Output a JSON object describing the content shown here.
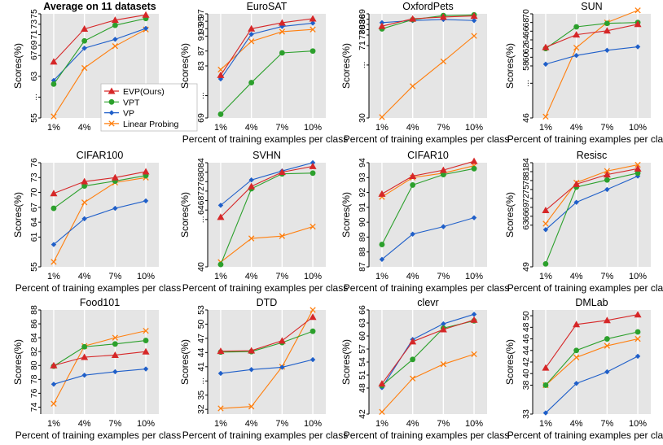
{
  "figure": {
    "x_tick_labels": [
      "1%",
      "4%",
      "7%",
      "10%"
    ],
    "legend_title_hidden": ""
  },
  "chart_data": [
    {
      "type": "line",
      "title": "Average on 11 datasets",
      "title_bold": true,
      "xlabel": "",
      "ylabel": "Scores(%)",
      "categories": [
        "1%",
        "4%",
        "7%",
        "10%"
      ],
      "ylim": [
        55,
        75
      ],
      "yticks": [
        55,
        59,
        63,
        67,
        69,
        71,
        73,
        75
      ],
      "ytick_labels": [
        "55",
        "...",
        "63",
        "67",
        "69",
        "71",
        "73",
        "75"
      ],
      "series": [
        {
          "name": "EVP(Ours)",
          "values": [
            65.8,
            72.1,
            73.8,
            74.8
          ]
        },
        {
          "name": "VPT",
          "values": [
            61.5,
            69.8,
            72.8,
            74.1
          ]
        },
        {
          "name": "VP",
          "values": [
            62.2,
            68.4,
            70.1,
            72.2
          ]
        },
        {
          "name": "Linear Probing",
          "values": [
            55.3,
            64.6,
            68.8,
            72.0
          ]
        }
      ],
      "legend": {
        "position": "bottom-right",
        "entries": [
          "EVP(Ours)",
          "VPT",
          "VP",
          "Linear Probing"
        ]
      }
    },
    {
      "type": "line",
      "title": "EuroSAT",
      "xlabel": "Percent of training examples per class",
      "ylabel": "Scores(%)",
      "categories": [
        "1%",
        "4%",
        "7%",
        "10%"
      ],
      "ylim": [
        69,
        97
      ],
      "yticks": [
        69,
        75,
        83,
        87,
        91,
        93,
        95,
        97
      ],
      "ytick_labels": [
        "69",
        "...",
        "83",
        "87",
        "91",
        "93",
        "95",
        "97"
      ],
      "series": [
        {
          "name": "EVP(Ours)",
          "values": [
            80.5,
            93.0,
            94.6,
            95.7
          ]
        },
        {
          "name": "VPT",
          "values": [
            70.0,
            78.5,
            86.5,
            87.0
          ]
        },
        {
          "name": "VP",
          "values": [
            79.5,
            91.5,
            93.6,
            94.5
          ]
        },
        {
          "name": "Linear Probing",
          "values": [
            82.0,
            89.6,
            92.2,
            92.8
          ]
        }
      ]
    },
    {
      "type": "line",
      "title": "OxfordPets",
      "xlabel": "Percent of training examples per class",
      "ylabel": "Scores(%)",
      "categories": [
        "1%",
        "4%",
        "7%",
        "10%"
      ],
      "ylim": [
        30,
        89
      ],
      "yticks": [
        30,
        60,
        71,
        77,
        80,
        83,
        86,
        89
      ],
      "ytick_labels": [
        "30",
        "...",
        "71",
        "77",
        "80",
        "83",
        "86",
        "89"
      ],
      "series": [
        {
          "name": "EVP(Ours)",
          "values": [
            82.0,
            86.2,
            87.2,
            87.8
          ]
        },
        {
          "name": "VPT",
          "values": [
            80.5,
            85.7,
            88.0,
            88.4
          ]
        },
        {
          "name": "VP",
          "values": [
            84.0,
            85.2,
            85.8,
            85.2
          ]
        },
        {
          "name": "Linear Probing",
          "values": [
            30.5,
            48.0,
            62.0,
            76.5
          ]
        }
      ]
    },
    {
      "type": "line",
      "title": "SUN",
      "xlabel": "Percent of training examples per class",
      "ylabel": "Scores(%)",
      "categories": [
        "1%",
        "4%",
        "7%",
        "10%"
      ],
      "ylim": [
        46,
        70
      ],
      "yticks": [
        46,
        54,
        58,
        60,
        62,
        64,
        66,
        68,
        70
      ],
      "ytick_labels": [
        "46",
        "...",
        "58",
        "60",
        "62",
        "64",
        "66",
        "68",
        "70"
      ],
      "series": [
        {
          "name": "EVP(Ours)",
          "values": [
            62.3,
            65.2,
            66.1,
            67.6
          ]
        },
        {
          "name": "VPT",
          "values": [
            62.0,
            67.0,
            67.8,
            68.0
          ]
        },
        {
          "name": "VP",
          "values": [
            58.4,
            60.4,
            61.6,
            62.4
          ]
        },
        {
          "name": "Linear Probing",
          "values": [
            46.3,
            62.2,
            68.0,
            70.8
          ]
        }
      ]
    },
    {
      "type": "line",
      "title": "CIFAR100",
      "xlabel": "Percent of training examples per class",
      "ylabel": "Scores(%)",
      "categories": [
        "1%",
        "4%",
        "7%",
        "10%"
      ],
      "ylim": [
        55,
        76
      ],
      "yticks": [
        55,
        61,
        64,
        67,
        70,
        73,
        76
      ],
      "ytick_labels": [
        "55",
        "61",
        "64",
        "67",
        "70",
        "73",
        "76"
      ],
      "series": [
        {
          "name": "EVP(Ours)",
          "values": [
            69.8,
            72.2,
            73.0,
            74.2
          ]
        },
        {
          "name": "VPT",
          "values": [
            66.8,
            71.3,
            72.3,
            73.4
          ]
        },
        {
          "name": "VP",
          "values": [
            59.5,
            64.7,
            66.8,
            68.3
          ]
        },
        {
          "name": "Linear Probing",
          "values": [
            56.0,
            68.0,
            72.0,
            73.0
          ]
        }
      ]
    },
    {
      "type": "line",
      "title": "SVHN",
      "xlabel": "Percent of training examples per class",
      "ylabel": "Scores(%)",
      "categories": [
        "1%",
        "4%",
        "7%",
        "10%"
      ],
      "ylim": [
        40,
        84
      ],
      "yticks": [
        40,
        60,
        64,
        68,
        72,
        76,
        80,
        84
      ],
      "ytick_labels": [
        "40",
        "...",
        "64",
        "68",
        "72",
        "76",
        "80",
        "84"
      ],
      "series": [
        {
          "name": "EVP(Ours)",
          "values": [
            61.0,
            74.0,
            80.0,
            82.5
          ]
        },
        {
          "name": "VPT",
          "values": [
            41.0,
            73.0,
            79.3,
            79.6
          ]
        },
        {
          "name": "VP",
          "values": [
            66.0,
            76.7,
            80.5,
            84.0
          ]
        },
        {
          "name": "Linear Probing",
          "values": [
            42.0,
            52.0,
            53.0,
            57.0
          ]
        }
      ]
    },
    {
      "type": "line",
      "title": "CIFAR10",
      "xlabel": "Percent of training examples per class",
      "ylabel": "Scores(%)",
      "categories": [
        "1%",
        "4%",
        "7%",
        "10%"
      ],
      "ylim": [
        87,
        94
      ],
      "yticks": [
        87,
        88,
        89,
        90,
        91,
        92,
        93,
        94
      ],
      "ytick_labels": [
        "87",
        "88",
        "89",
        "90",
        "91",
        "92",
        "93",
        "94"
      ],
      "series": [
        {
          "name": "EVP(Ours)",
          "values": [
            91.9,
            93.1,
            93.5,
            94.1
          ]
        },
        {
          "name": "VPT",
          "values": [
            88.5,
            92.5,
            93.2,
            93.6
          ]
        },
        {
          "name": "VP",
          "values": [
            87.5,
            89.2,
            89.7,
            90.3
          ]
        },
        {
          "name": "Linear Probing",
          "values": [
            91.7,
            93.0,
            93.3,
            93.8
          ]
        }
      ]
    },
    {
      "type": "line",
      "title": "Resisc",
      "xlabel": "Percent of training examples per class",
      "ylabel": "Scores(%)",
      "categories": [
        "1%",
        "4%",
        "7%",
        "10%"
      ],
      "ylim": [
        49,
        84
      ],
      "yticks": [
        49,
        63,
        66,
        69,
        72,
        75,
        78,
        81,
        84
      ],
      "ytick_labels": [
        "49",
        "63",
        "66",
        "69",
        "72",
        "75",
        "78",
        "81",
        "84"
      ],
      "series": [
        {
          "name": "EVP(Ours)",
          "values": [
            68.0,
            76.8,
            80.0,
            82.0
          ]
        },
        {
          "name": "VPT",
          "values": [
            50.0,
            75.8,
            78.2,
            80.5
          ]
        },
        {
          "name": "VP",
          "values": [
            61.5,
            70.7,
            75.0,
            79.5
          ]
        },
        {
          "name": "Linear Probing",
          "values": [
            63.5,
            77.3,
            81.2,
            83.3
          ]
        }
      ]
    },
    {
      "type": "line",
      "title": "Food101",
      "xlabel": "Percent of training examples per class",
      "ylabel": "Scores(%)",
      "categories": [
        "1%",
        "4%",
        "7%",
        "10%"
      ],
      "ylim": [
        73,
        88
      ],
      "yticks": [
        74,
        76,
        78,
        80,
        82,
        84,
        86,
        88
      ],
      "ytick_labels": [
        "74",
        "76",
        "78",
        "80",
        "82",
        "84",
        "86",
        "88"
      ],
      "series": [
        {
          "name": "EVP(Ours)",
          "values": [
            80.0,
            81.2,
            81.5,
            82.0
          ]
        },
        {
          "name": "VPT",
          "values": [
            79.9,
            82.7,
            83.1,
            83.6
          ]
        },
        {
          "name": "VP",
          "values": [
            77.3,
            78.6,
            79.1,
            79.5
          ]
        },
        {
          "name": "Linear Probing",
          "values": [
            74.5,
            82.8,
            84.0,
            85.0
          ]
        }
      ]
    },
    {
      "type": "line",
      "title": "DTD",
      "xlabel": "Percent of training examples per class",
      "ylabel": "Scores(%)",
      "categories": [
        "1%",
        "4%",
        "7%",
        "10%"
      ],
      "ylim": [
        31,
        53
      ],
      "yticks": [
        32,
        35,
        38,
        41,
        44,
        47,
        50,
        53
      ],
      "ytick_labels": [
        "32",
        "35",
        "...",
        "41",
        "44",
        "47",
        "50",
        "53"
      ],
      "series": [
        {
          "name": "EVP(Ours)",
          "values": [
            44.3,
            44.4,
            46.5,
            51.5
          ]
        },
        {
          "name": "VPT",
          "values": [
            44.1,
            44.2,
            46.1,
            48.5
          ]
        },
        {
          "name": "VP",
          "values": [
            39.6,
            40.4,
            40.9,
            42.5
          ]
        },
        {
          "name": "Linear Probing",
          "values": [
            32.2,
            32.6,
            41.0,
            53.0
          ]
        }
      ]
    },
    {
      "type": "line",
      "title": "clevr",
      "xlabel": "Percent of training examples per class",
      "ylabel": "Scores(%)",
      "categories": [
        "1%",
        "4%",
        "7%",
        "10%"
      ],
      "ylim": [
        42,
        66
      ],
      "yticks": [
        42,
        48,
        51,
        54,
        57,
        60,
        63,
        66
      ],
      "ytick_labels": [
        "42",
        "48",
        "51",
        "54",
        "57",
        "60",
        "63",
        "66"
      ],
      "series": [
        {
          "name": "EVP(Ours)",
          "values": [
            49.0,
            58.7,
            61.5,
            63.7
          ]
        },
        {
          "name": "VPT",
          "values": [
            48.6,
            54.6,
            61.8,
            63.5
          ]
        },
        {
          "name": "VP",
          "values": [
            48.1,
            59.2,
            62.8,
            65.0
          ]
        },
        {
          "name": "Linear Probing",
          "values": [
            42.5,
            50.2,
            53.5,
            55.8
          ]
        }
      ]
    },
    {
      "type": "line",
      "title": "DMLab",
      "xlabel": "Percent of training examples per class",
      "ylabel": "Scores(%)",
      "categories": [
        "1%",
        "4%",
        "7%",
        "10%"
      ],
      "ylim": [
        33,
        51
      ],
      "yticks": [
        33,
        38,
        40,
        42,
        44,
        46,
        48,
        50
      ],
      "ytick_labels": [
        "33",
        "38",
        "40",
        "42",
        "44",
        "46",
        "48",
        "50"
      ],
      "series": [
        {
          "name": "EVP(Ours)",
          "values": [
            41.0,
            48.5,
            49.2,
            50.2
          ]
        },
        {
          "name": "VPT",
          "values": [
            38.0,
            44.0,
            46.0,
            47.2
          ]
        },
        {
          "name": "VP",
          "values": [
            33.2,
            38.3,
            40.3,
            43.0
          ]
        },
        {
          "name": "Linear Probing",
          "values": [
            38.0,
            42.8,
            44.8,
            46.0
          ]
        }
      ]
    }
  ],
  "series_style": {
    "EVP(Ours)": {
      "color": "#d62728",
      "marker": "triangle"
    },
    "VPT": {
      "color": "#2ca02c",
      "marker": "circle"
    },
    "VP": {
      "color": "#1f5fc9",
      "marker": "diamond"
    },
    "Linear Probing": {
      "color": "#ff7f0e",
      "marker": "x"
    }
  },
  "panel_background": "#e5e5e5"
}
